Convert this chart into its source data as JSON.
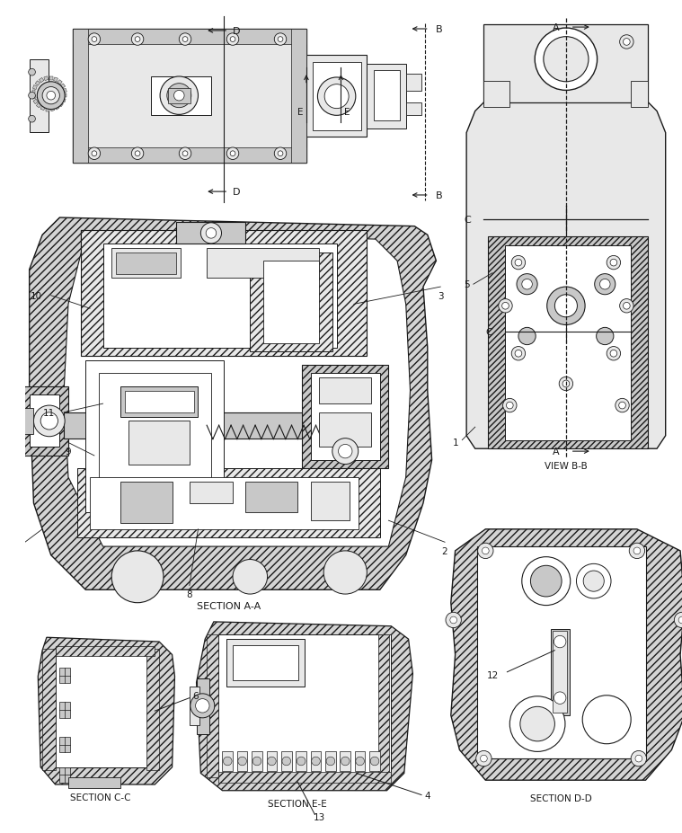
{
  "bg_color": "#ffffff",
  "lc": "#1a1a1a",
  "gray_light": "#e8e8e8",
  "gray_mid": "#c8c8c8",
  "gray_dark": "#a0a0a0",
  "hatch_fc": "#d4d4d4",
  "labels": {
    "section_aa": "SECTION A-A",
    "view_bb": "VIEW B-B",
    "section_cc": "SECTION C-C",
    "section_dd": "SECTION D-D",
    "section_ee": "SECTION E-E"
  },
  "figsize": [
    7.59,
    9.28
  ],
  "dpi": 100
}
